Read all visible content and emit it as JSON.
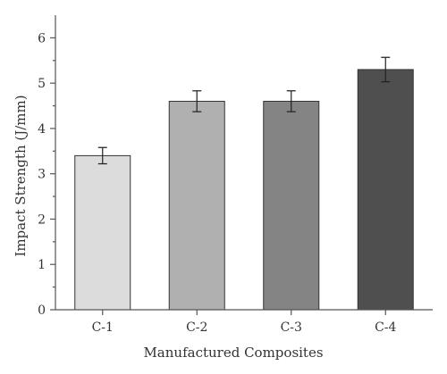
{
  "chart_data": {
    "type": "bar",
    "categories": [
      "C-1",
      "C-2",
      "C-3",
      "C-4"
    ],
    "values": [
      3.4,
      4.6,
      4.6,
      5.3
    ],
    "errors": [
      0.18,
      0.23,
      0.23,
      0.27
    ],
    "bar_colors": [
      "#dcdcdc",
      "#b0b0b0",
      "#848484",
      "#4f4f4f"
    ],
    "xlabel": "Manufactured Composites",
    "ylabel": "Impact Strength (J/mm)",
    "ylim": [
      0,
      6.5
    ],
    "yticks": [
      "0",
      "1",
      "2",
      "3",
      "4",
      "5",
      "6"
    ],
    "grid": false,
    "legend": "none"
  }
}
